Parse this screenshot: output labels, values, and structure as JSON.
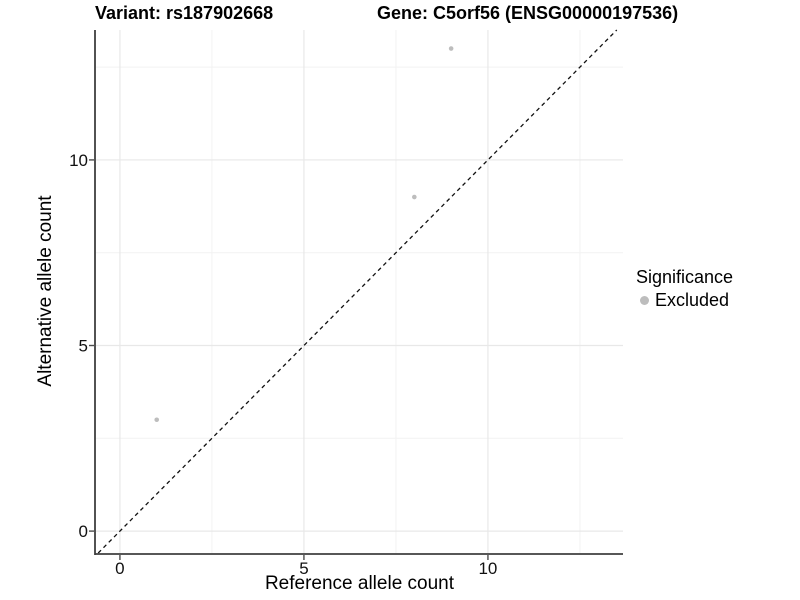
{
  "chart_data": {
    "type": "scatter",
    "titles": [
      "Variant: rs187902668",
      "Gene: C5orf56 (ENSG00000197536)"
    ],
    "xlabel": "Reference allele count",
    "ylabel": "Alternative allele count",
    "xlim": [
      -0.65,
      13.67
    ],
    "ylim": [
      -0.59,
      13.5
    ],
    "x_ticks": [
      0,
      5,
      10
    ],
    "y_ticks": [
      0,
      5,
      10
    ],
    "x_minor_ticks": [
      2.5,
      7.5,
      12.5
    ],
    "y_minor_ticks": [
      2.5,
      7.5,
      12.5
    ],
    "grid": true,
    "legend_position": "right-middle",
    "series": [
      {
        "name": "Excluded",
        "color": "#bdbdbd",
        "points": [
          {
            "x": 1,
            "y": 3
          },
          {
            "x": 8,
            "y": 9
          },
          {
            "x": 9,
            "y": 13
          }
        ]
      }
    ],
    "reference_line": {
      "type": "identity y=x",
      "style": "dashed",
      "color": "#111111"
    },
    "legend": {
      "title": "Significance",
      "items": [
        {
          "label": "Excluded",
          "color": "#bdbdbd"
        }
      ]
    }
  },
  "colors": {
    "background": "#ffffff",
    "point": "#bdbdbd",
    "axis_line": "#3f3f3f",
    "tick_mark": "#4d4d4d",
    "tick_text": "#111111",
    "grid_major": "#e8e8e8",
    "grid_minor": "#f2f2f2"
  }
}
